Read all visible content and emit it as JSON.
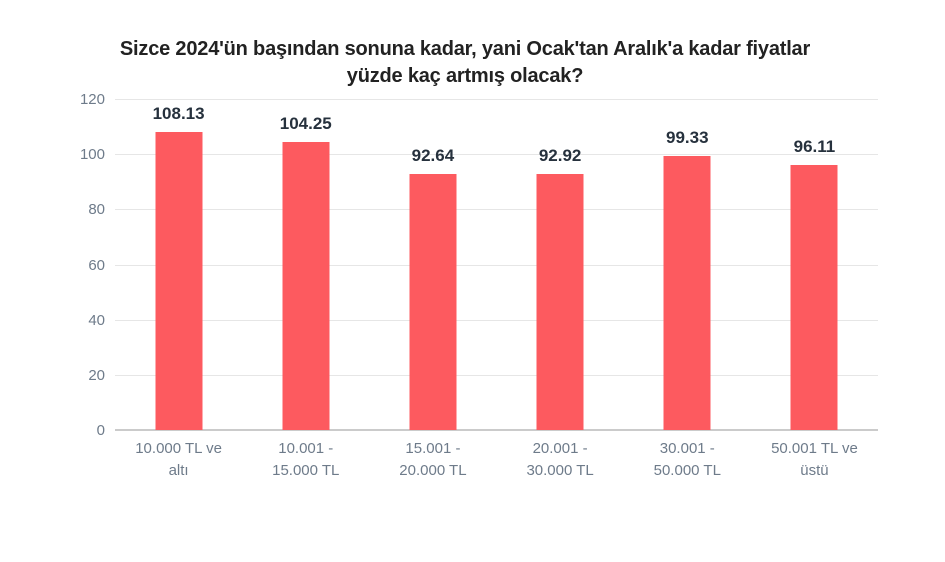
{
  "chart_data": {
    "type": "bar",
    "title": "Sizce 2024'ün başından sonuna kadar, yani Ocak'tan Aralık'a kadar fiyatlar yüzde kaç artmış olacak?",
    "categories": [
      "10.000 TL ve\naltı",
      "10.001 -\n15.000 TL",
      "15.001 -\n20.000 TL",
      "20.001 -\n30.000 TL",
      "30.001 -\n50.000 TL",
      "50.001 TL ve\nüstü"
    ],
    "values": [
      108.13,
      104.25,
      92.64,
      92.92,
      99.33,
      96.11
    ],
    "value_labels": [
      "108.13",
      "104.25",
      "92.64",
      "92.92",
      "99.33",
      "96.11"
    ],
    "y_ticks": [
      0,
      20,
      40,
      60,
      80,
      100,
      120
    ],
    "ylim": [
      0,
      120
    ],
    "xlabel": "",
    "ylabel": "",
    "grid": true,
    "legend": "none",
    "colors": {
      "bar": "#FD5A5F",
      "title": "#222222",
      "value_label": "#26313D",
      "axis_label": "#6E7B8A",
      "gridline": "#E6E6E6",
      "baseline": "#CBCBCB",
      "background": "#FFFFFF"
    }
  }
}
